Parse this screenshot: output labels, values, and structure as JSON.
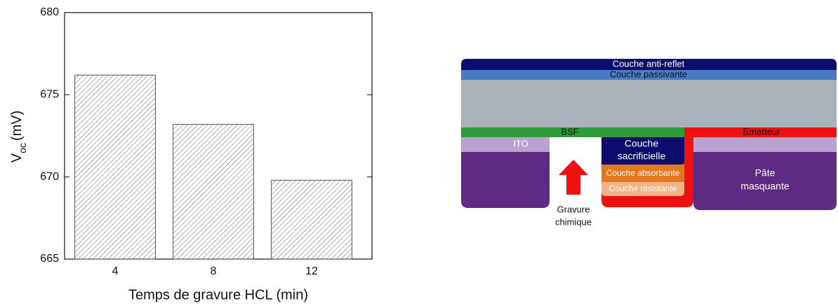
{
  "chart_data": {
    "type": "bar",
    "ylabel": [
      "V",
      "oc",
      "(mV)"
    ],
    "xlabel": "Temps de gravure HCL (min)",
    "categories": [
      "4",
      "8",
      "12"
    ],
    "values": [
      676.2,
      673.2,
      669.8
    ],
    "color": "#555555",
    "ylim": [
      665,
      680
    ],
    "yticks": [
      665,
      670,
      675,
      680
    ],
    "grid": false
  },
  "diagram": {
    "anti_reflection": "Couche anti-reflet",
    "passivation": "Couche passivante",
    "bsf": "BSF",
    "emitter": "Emetteur",
    "ito": "ITO",
    "sacrificial": [
      "Couche",
      "sacrificielle"
    ],
    "absorbing": "Couche absorbante",
    "resistant": "Couche résistante",
    "paste": [
      "Pâte",
      "masquante"
    ],
    "etching": [
      "Gravure",
      "chimique"
    ]
  }
}
